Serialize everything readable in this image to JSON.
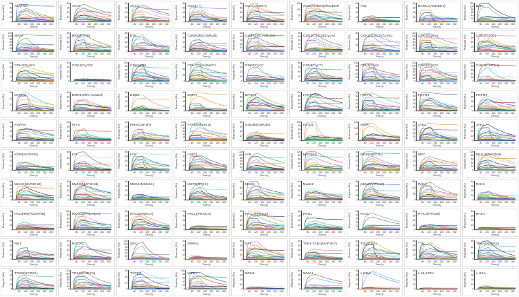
{
  "chart_data": {
    "type": "line",
    "xlabel": "Time (s)",
    "ylabel": "Response (RU)",
    "xlim": [
      40,
      300
    ],
    "xticks": [
      80,
      120,
      160,
      200,
      240,
      280
    ],
    "injection": [
      60,
      130
    ],
    "series_colors": [
      "#1f3fbf",
      "#2ca02c",
      "#d62728",
      "#17becf",
      "#9467bd",
      "#e377c2",
      "#bcbd22",
      "#ff7f0e",
      "#0b0b6b",
      "#22c95a",
      "#8c564b",
      "#7fd3ff"
    ],
    "panels": [
      {
        "title": "ACVR2A",
        "ymax": 80,
        "peaks": [
          75,
          55,
          30,
          20,
          12
        ]
      },
      {
        "title": "AKT1",
        "ymax": 40,
        "peaks": [
          38,
          30,
          25,
          15,
          8
        ]
      },
      {
        "title": "AKT2",
        "ymax": 40,
        "peaks": [
          40,
          30,
          20,
          12,
          6
        ]
      },
      {
        "title": "AKT3",
        "ymax": 80,
        "peaks": [
          80,
          50,
          40,
          25,
          10
        ]
      },
      {
        "title": "AurA(AURKA)",
        "ymax": 80,
        "peaks": [
          80,
          60,
          45,
          30,
          15
        ]
      },
      {
        "title": "AurB(AURKB)/INCENP",
        "ymax": 150,
        "peaks": [
          140,
          110,
          80,
          50,
          25
        ]
      },
      {
        "title": "AXL",
        "ymax": 40,
        "peaks": [
          14,
          10,
          8,
          5,
          3
        ]
      },
      {
        "title": "BARK1(ADRBK1)",
        "ymax": 40,
        "peaks": [
          25,
          14,
          10,
          6,
          3
        ]
      },
      {
        "title": "BMX",
        "ymax": 120,
        "peaks": [
          120,
          40,
          30,
          15,
          8
        ]
      },
      {
        "title": "BRAF",
        "ymax": 120,
        "peaks": [
          115,
          60,
          40,
          25,
          12
        ]
      },
      {
        "title": "BRK(PTK6)",
        "ymax": 80,
        "peaks": [
          75,
          50,
          35,
          20,
          10
        ]
      },
      {
        "title": "BTK",
        "ymax": 80,
        "peaks": [
          80,
          55,
          35,
          20,
          10
        ]
      },
      {
        "title": "CaMK2b(CAMK2B)",
        "ymax": 40,
        "peaks": [
          25,
          20,
          14,
          8,
          4
        ]
      },
      {
        "title": "CaMK2d(CAMK2D)",
        "ymax": 50,
        "peaks": [
          48,
          35,
          25,
          15,
          6
        ]
      },
      {
        "title": "CDK1(CDC2)/CycA2",
        "ymax": 50,
        "peaks": [
          50,
          30,
          12,
          8,
          4
        ]
      },
      {
        "title": "CDK1(CDC2)/CycB1",
        "ymax": 60,
        "peaks": [
          60,
          35,
          25,
          15,
          6
        ]
      },
      {
        "title": "CDK2/CycA2",
        "ymax": 120,
        "peaks": [
          115,
          90,
          60,
          35,
          15
        ]
      },
      {
        "title": "CDK2/CycE1",
        "ymax": 80,
        "peaks": [
          75,
          55,
          40,
          25,
          10
        ]
      },
      {
        "title": "CDK3/CycE1",
        "ymax": 40,
        "peaks": [
          32,
          22,
          15,
          8,
          4
        ]
      },
      {
        "title": "CDK4/CycD3",
        "ymax": 40,
        "peaks": [
          6,
          5,
          4,
          3,
          2
        ]
      },
      {
        "title": "CDK5/p35",
        "ymax": 100,
        "peaks": [
          100,
          70,
          50,
          30,
          12
        ]
      },
      {
        "title": "CDK7/CycH/MAT1",
        "ymax": 60,
        "peaks": [
          60,
          45,
          30,
          18,
          8
        ]
      },
      {
        "title": "CDK8/CycC",
        "ymax": 40,
        "peaks": [
          30,
          12,
          8,
          5,
          3
        ]
      },
      {
        "title": "CDK9/CycT1",
        "ymax": 80,
        "peaks": [
          80,
          55,
          40,
          25,
          10
        ]
      },
      {
        "title": "CDK9/CycK",
        "ymax": 100,
        "peaks": [
          95,
          70,
          50,
          30,
          12
        ]
      },
      {
        "title": "CDK9/CycT2",
        "ymax": 120,
        "peaks": [
          115,
          85,
          60,
          35,
          15
        ]
      },
      {
        "title": "CHK1(CHEK1)",
        "ymax": 100,
        "peaks": [
          95,
          30,
          15,
          8,
          4
        ]
      },
      {
        "title": "DAPK3",
        "ymax": 60,
        "peaks": [
          60,
          50,
          25,
          15,
          6
        ]
      },
      {
        "title": "DDR1(SRC treated)",
        "ymax": 40,
        "peaks": [
          28,
          20,
          14,
          8,
          4
        ]
      },
      {
        "title": "DDR2",
        "ymax": 40,
        "peaks": [
          35,
          12,
          6,
          4,
          2
        ]
      },
      {
        "title": "EGFR",
        "ymax": 80,
        "peaks": [
          80,
          30,
          15,
          8,
          4
        ]
      },
      {
        "title": "EPHA2",
        "ymax": 80,
        "peaks": [
          80,
          60,
          45,
          30,
          12
        ]
      },
      {
        "title": "FAK(PTK2)",
        "ymax": 100,
        "peaks": [
          100,
          75,
          55,
          30,
          12
        ]
      },
      {
        "title": "FGFR1",
        "ymax": 50,
        "peaks": [
          48,
          35,
          25,
          15,
          6
        ]
      },
      {
        "title": "FGFR2",
        "ymax": 50,
        "peaks": [
          50,
          38,
          28,
          15,
          6
        ]
      },
      {
        "title": "FGFR3",
        "ymax": 40,
        "peaks": [
          32,
          25,
          18,
          10,
          4
        ]
      },
      {
        "title": "FGFR4",
        "ymax": 40,
        "peaks": [
          30,
          25,
          15,
          8,
          4
        ]
      },
      {
        "title": "FLT3",
        "ymax": 40,
        "peaks": [
          28,
          15,
          10,
          6,
          3
        ]
      },
      {
        "title": "FMS(CSF1R)",
        "ymax": 40,
        "peaks": [
          24,
          18,
          12,
          8,
          4
        ]
      },
      {
        "title": "FYN(isoform a)",
        "ymax": 120,
        "peaks": [
          115,
          60,
          40,
          20,
          8
        ]
      },
      {
        "title": "GSK3b(GSK3B)",
        "ymax": 40,
        "peaks": [
          20,
          16,
          12,
          8,
          4
        ]
      },
      {
        "title": "IGF1R",
        "ymax": 100,
        "peaks": [
          100,
          30,
          20,
          12,
          6
        ]
      },
      {
        "title": "INSR",
        "ymax": 150,
        "peaks": [
          140,
          60,
          40,
          20,
          8
        ]
      },
      {
        "title": "JAK1",
        "ymax": 50,
        "peaks": [
          48,
          40,
          30,
          18,
          8
        ]
      },
      {
        "title": "JAK2",
        "ymax": 40,
        "peaks": [
          35,
          28,
          20,
          12,
          5
        ]
      },
      {
        "title": "KDR(VEGFR2)",
        "ymax": 40,
        "peaks": [
          20,
          14,
          10,
          6,
          3
        ]
      },
      {
        "title": "KIT",
        "ymax": 60,
        "peaks": [
          60,
          30,
          22,
          14,
          6
        ]
      },
      {
        "title": "LCK",
        "ymax": 80,
        "peaks": [
          75,
          60,
          45,
          25,
          10
        ]
      },
      {
        "title": "LIMK2",
        "ymax": 40,
        "peaks": [
          35,
          30,
          22,
          12,
          5
        ]
      },
      {
        "title": "LYN",
        "ymax": 120,
        "peaks": [
          115,
          90,
          60,
          35,
          15
        ]
      },
      {
        "title": "MAP3K5",
        "ymax": 100,
        "peaks": [
          100,
          70,
          40,
          25,
          10
        ]
      },
      {
        "title": "MER(MERTK)",
        "ymax": 40,
        "peaks": [
          40,
          28,
          20,
          12,
          5
        ]
      },
      {
        "title": "MET",
        "ymax": 40,
        "peaks": [
          30,
          25,
          20,
          12,
          5
        ]
      },
      {
        "title": "MLK1(MAP3K9)",
        "ymax": 100,
        "peaks": [
          100,
          70,
          50,
          30,
          12
        ]
      },
      {
        "title": "MLK2(MAP3K10)",
        "ymax": 50,
        "peaks": [
          45,
          35,
          25,
          15,
          6
        ]
      },
      {
        "title": "MLK3(MAP3K11)",
        "ymax": 40,
        "peaks": [
          40,
          30,
          20,
          12,
          5
        ]
      },
      {
        "title": "MNK1(MKNK1)",
        "ymax": 40,
        "peaks": [
          12,
          10,
          7,
          5,
          3
        ]
      },
      {
        "title": "MST2(STK3)",
        "ymax": 40,
        "peaks": [
          38,
          25,
          18,
          10,
          5
        ]
      },
      {
        "title": "MUSK",
        "ymax": 60,
        "peaks": [
          60,
          45,
          30,
          18,
          8
        ]
      },
      {
        "title": "NuaK2",
        "ymax": 40,
        "peaks": [
          25,
          20,
          14,
          8,
          4
        ]
      },
      {
        "title": "p38a(MAPK14)",
        "ymax": 80,
        "peaks": [
          75,
          55,
          40,
          25,
          10
        ]
      },
      {
        "title": "PAK1",
        "ymax": 150,
        "peaks": [
          145,
          110,
          80,
          50,
          20
        ]
      },
      {
        "title": "PAK6",
        "ymax": 40,
        "peaks": [
          20,
          16,
          12,
          8,
          4
        ]
      },
      {
        "title": "PDGFRb(PDGFRB)",
        "ymax": 40,
        "peaks": [
          15,
          12,
          9,
          6,
          3
        ]
      },
      {
        "title": "PKACa(PRKACA)",
        "ymax": 100,
        "peaks": [
          95,
          70,
          50,
          30,
          12
        ]
      },
      {
        "title": "PKCa(PRKCA)",
        "ymax": 40,
        "peaks": [
          35,
          28,
          20,
          12,
          5
        ]
      },
      {
        "title": "PKCg(PRKCG)",
        "ymax": 40,
        "peaks": [
          10,
          8,
          6,
          4,
          2
        ]
      },
      {
        "title": "PKCz(PRKCZ)",
        "ymax": 40,
        "peaks": [
          40,
          30,
          20,
          12,
          5
        ]
      },
      {
        "title": "PKN1",
        "ymax": 40,
        "peaks": [
          25,
          15,
          10,
          6,
          3
        ]
      },
      {
        "title": "PLK1",
        "ymax": 50,
        "peaks": [
          45,
          15,
          10,
          6,
          3
        ]
      },
      {
        "title": "PYK2(PTK2B)",
        "ymax": 40,
        "peaks": [
          12,
          10,
          8,
          5,
          3
        ]
      },
      {
        "title": "RAF1",
        "ymax": 40,
        "peaks": [
          6,
          5,
          4,
          3,
          2
        ]
      },
      {
        "title": "RET",
        "ymax": 40,
        "peaks": [
          25,
          18,
          12,
          8,
          4
        ]
      },
      {
        "title": "ROCK1",
        "ymax": 40,
        "peaks": [
          38,
          28,
          12,
          8,
          4
        ]
      },
      {
        "title": "SRC",
        "ymax": 120,
        "peaks": [
          120,
          35,
          20,
          12,
          6
        ]
      },
      {
        "title": "SRPK1",
        "ymax": 40,
        "peaks": [
          8,
          6,
          5,
          3,
          2
        ]
      },
      {
        "title": "SYK",
        "ymax": 40,
        "peaks": [
          38,
          30,
          22,
          12,
          5
        ]
      },
      {
        "title": "TAK1-TAB1(MAP3K7)",
        "ymax": 40,
        "peaks": [
          22,
          18,
          12,
          8,
          4
        ]
      },
      {
        "title": "TIE2(TEK)",
        "ymax": 40,
        "peaks": [
          40,
          32,
          24,
          14,
          6
        ]
      },
      {
        "title": "TTK",
        "ymax": 80,
        "peaks": [
          80,
          65,
          45,
          28,
          12
        ]
      },
      {
        "title": "TRKA(NTRK1)",
        "ymax": 60,
        "peaks": [
          60,
          40,
          30,
          18,
          8
        ]
      },
      {
        "title": "TRKB(NTRK2)",
        "ymax": 40,
        "peaks": [
          30,
          25,
          18,
          10,
          5
        ]
      },
      {
        "title": "TRKC(NTRK3)",
        "ymax": 120,
        "peaks": [
          120,
          80,
          50,
          30,
          12
        ]
      },
      {
        "title": "TYRO3",
        "ymax": 60,
        "peaks": [
          60,
          40,
          30,
          18,
          8
        ]
      },
      {
        "title": "WEE1",
        "ymax": 100,
        "peaks": [
          90,
          70,
          40,
          20,
          8
        ]
      },
      {
        "title": "WNK1",
        "ymax": 40,
        "peaks": [
          5,
          4,
          3,
          2,
          1
        ]
      },
      {
        "title": "WNK4",
        "ymax": 40,
        "peaks": [
          32,
          10,
          6,
          4,
          2
        ]
      },
      {
        "title": "x CD4",
        "ymax": 40,
        "peaks": [
          42,
          4,
          3,
          2,
          1
        ]
      },
      {
        "title": "x hIL17RA",
        "ymax": 40,
        "peaks": [
          3,
          2,
          2,
          1,
          1
        ]
      },
      {
        "title": "x HSA",
        "ymax": 40,
        "peaks": [
          7,
          5,
          3,
          2,
          1
        ]
      }
    ]
  }
}
